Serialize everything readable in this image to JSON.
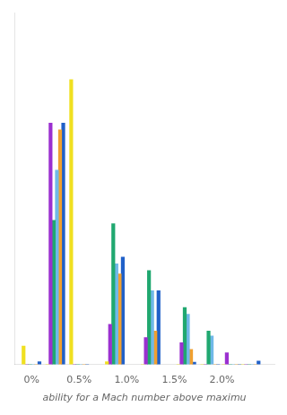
{
  "chart_data": {
    "type": "bar",
    "x": [
      0.0,
      0.25,
      0.5,
      0.875,
      1.25,
      1.625,
      1.875,
      2.1,
      2.3
    ],
    "series": [
      {
        "color": "#f0e020",
        "values": [
          0.055,
          0.0,
          0.85,
          0.008,
          0.0,
          0.0,
          0.0,
          0.0,
          0.0
        ]
      },
      {
        "color": "#9b30d0",
        "values": [
          0.0,
          0.72,
          0.0,
          0.12,
          0.08,
          0.065,
          0.0,
          0.035,
          0.0
        ]
      },
      {
        "color": "#20a870",
        "values": [
          0.0,
          0.43,
          0.0,
          0.42,
          0.28,
          0.17,
          0.1,
          0.0,
          0.0
        ]
      },
      {
        "color": "#70b8e8",
        "values": [
          0.0,
          0.58,
          0.0,
          0.3,
          0.22,
          0.15,
          0.085,
          0.0,
          0.0
        ]
      },
      {
        "color": "#f0a030",
        "values": [
          0.0,
          0.7,
          0.0,
          0.27,
          0.1,
          0.045,
          0.0,
          0.0,
          0.0
        ]
      },
      {
        "color": "#2060c8",
        "values": [
          0.008,
          0.72,
          0.0,
          0.32,
          0.22,
          0.007,
          0.0,
          0.0,
          0.01
        ]
      }
    ],
    "xlabel": "ability for a Mach number above maximu",
    "xlim": [
      -0.18,
      2.55
    ],
    "xticks": [
      {
        "value": 0.0,
        "label": "0%"
      },
      {
        "value": 0.5,
        "label": "0.5%"
      },
      {
        "value": 1.0,
        "label": "1.0%"
      },
      {
        "value": 1.5,
        "label": "1.5%"
      },
      {
        "value": 2.0,
        "label": "2.0%"
      }
    ],
    "ylim": [
      0,
      1.05
    ],
    "tick_labels": "x",
    "grid": false
  }
}
